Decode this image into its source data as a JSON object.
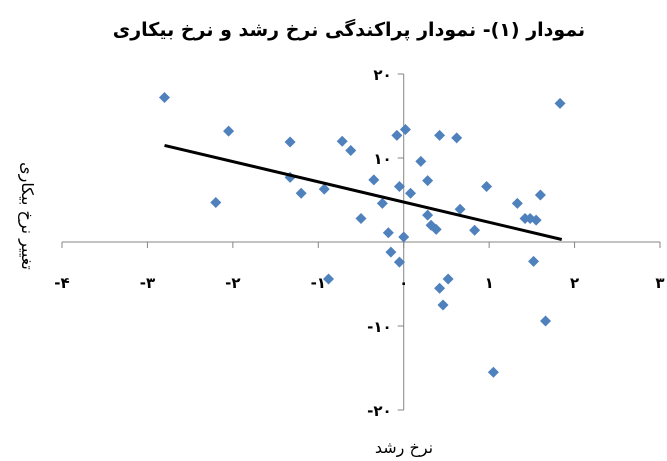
{
  "chart_data": {
    "type": "scatter",
    "title": "نمودار (۱)- نمودار پراکندگی نرخ رشد و نرخ بیکاری",
    "xlabel": "نرخ رشد",
    "ylabel": "تغییر نرخ بیکاری",
    "xlim": [
      -4,
      3
    ],
    "ylim": [
      -20,
      20
    ],
    "xticks": [
      {
        "value": -4,
        "label": "-۴"
      },
      {
        "value": -3,
        "label": "-۳"
      },
      {
        "value": -2,
        "label": "-۲"
      },
      {
        "value": -1,
        "label": "-۱"
      },
      {
        "value": 0,
        "label": "۰"
      },
      {
        "value": 1,
        "label": "۱"
      },
      {
        "value": 2,
        "label": "۲"
      },
      {
        "value": 3,
        "label": "۳"
      }
    ],
    "yticks": [
      {
        "value": 20,
        "label": "۲۰"
      },
      {
        "value": 10,
        "label": "۱۰"
      },
      {
        "value": -10,
        "label": "-۱۰"
      },
      {
        "value": -20,
        "label": "-۲۰"
      }
    ],
    "grid": false,
    "marker_color": "#4f81bd",
    "trendline_color": "#000000",
    "points": [
      {
        "x": -2.8,
        "y": 17.2
      },
      {
        "x": -2.05,
        "y": 13.2
      },
      {
        "x": -2.2,
        "y": 4.7
      },
      {
        "x": -1.33,
        "y": 11.9
      },
      {
        "x": -1.33,
        "y": 7.7
      },
      {
        "x": -1.2,
        "y": 5.8
      },
      {
        "x": -0.93,
        "y": 6.3
      },
      {
        "x": -0.88,
        "y": -4.4
      },
      {
        "x": -0.72,
        "y": 12.0
      },
      {
        "x": -0.62,
        "y": 10.9
      },
      {
        "x": -0.5,
        "y": 2.8
      },
      {
        "x": -0.35,
        "y": 7.4
      },
      {
        "x": -0.25,
        "y": 4.6
      },
      {
        "x": -0.18,
        "y": 1.1
      },
      {
        "x": -0.15,
        "y": -1.2
      },
      {
        "x": -0.08,
        "y": 12.7
      },
      {
        "x": -0.05,
        "y": 6.6
      },
      {
        "x": -0.05,
        "y": -2.4
      },
      {
        "x": 0.02,
        "y": 13.4
      },
      {
        "x": 0.0,
        "y": 0.6
      },
      {
        "x": 0.08,
        "y": 5.8
      },
      {
        "x": 0.2,
        "y": 9.6
      },
      {
        "x": 0.28,
        "y": 7.3
      },
      {
        "x": 0.28,
        "y": 3.2
      },
      {
        "x": 0.32,
        "y": 2.0
      },
      {
        "x": 0.38,
        "y": 1.5
      },
      {
        "x": 0.42,
        "y": 12.7
      },
      {
        "x": 0.42,
        "y": -5.5
      },
      {
        "x": 0.46,
        "y": -7.5
      },
      {
        "x": 0.52,
        "y": -4.4
      },
      {
        "x": 0.62,
        "y": 12.4
      },
      {
        "x": 0.66,
        "y": 3.9
      },
      {
        "x": 0.83,
        "y": 1.4
      },
      {
        "x": 0.97,
        "y": 6.6
      },
      {
        "x": 1.05,
        "y": -15.5
      },
      {
        "x": 1.33,
        "y": 4.6
      },
      {
        "x": 1.42,
        "y": 2.8
      },
      {
        "x": 1.48,
        "y": 2.8
      },
      {
        "x": 1.52,
        "y": -2.3
      },
      {
        "x": 1.55,
        "y": 2.6
      },
      {
        "x": 1.6,
        "y": 5.6
      },
      {
        "x": 1.66,
        "y": -9.4
      },
      {
        "x": 1.83,
        "y": 16.5
      }
    ],
    "trendline": {
      "x": [
        -2.8,
        1.85
      ],
      "y": [
        11.5,
        0.3
      ]
    }
  }
}
